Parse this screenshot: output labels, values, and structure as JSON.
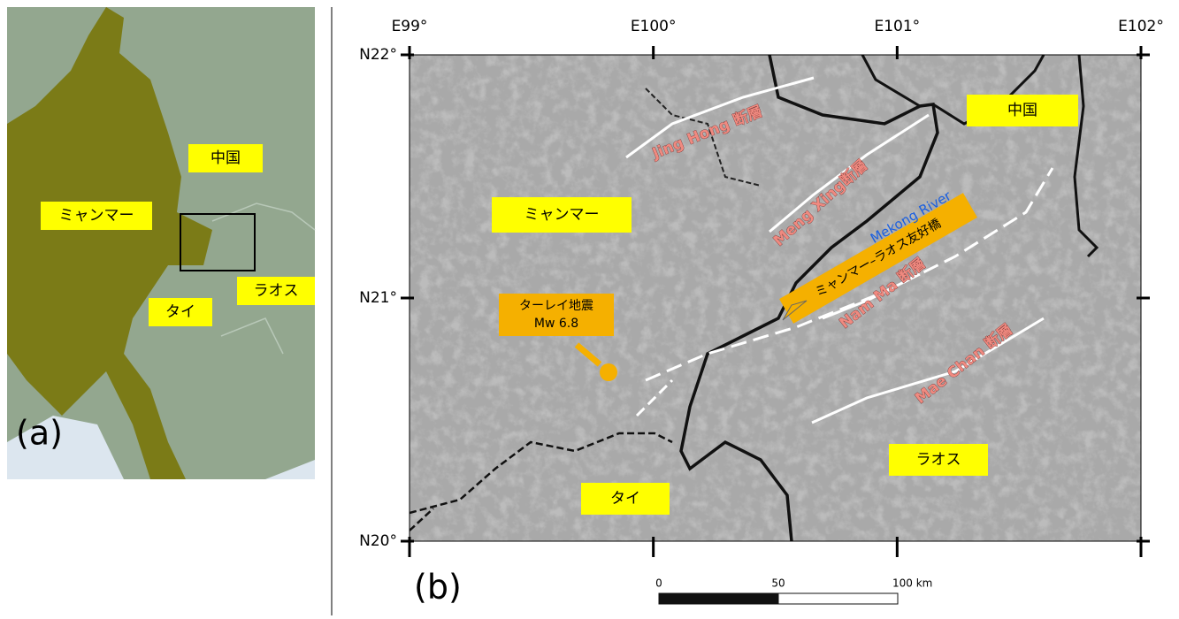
{
  "panel_a": {
    "label": "(a)",
    "places": {
      "china": "中国",
      "myanmar": "ミャンマー",
      "laos": "ラオス",
      "thailand": "タイ"
    }
  },
  "panel_b": {
    "label": "(b)",
    "longitude_ticks": [
      {
        "value": 99,
        "label": "E99°"
      },
      {
        "value": 100,
        "label": "E100°"
      },
      {
        "value": 101,
        "label": "E101°"
      },
      {
        "value": 102,
        "label": "E102°"
      }
    ],
    "latitude_ticks": [
      {
        "value": 22,
        "label": "N22°"
      },
      {
        "value": 21,
        "label": "N21°"
      },
      {
        "value": 20,
        "label": "N20°"
      }
    ],
    "places": {
      "china": "中国",
      "myanmar": "ミャンマー",
      "laos": "ラオス",
      "thailand": "タイ"
    },
    "earthquake": {
      "name": "ターレイ地震",
      "magnitude": "Mw 6.8"
    },
    "faults": [
      "Jing Hong 断層",
      "Meng Xing断層",
      "Nam Ma 断層",
      "Mae Chan 断層"
    ],
    "river": "Mekong River",
    "bridge": "ミャンマー–ラオス友好橋",
    "scale_bar": [
      {
        "value": 0,
        "label": "0"
      },
      {
        "value": 50,
        "label": "50"
      },
      {
        "value": 100,
        "label": "100 km"
      }
    ]
  }
}
